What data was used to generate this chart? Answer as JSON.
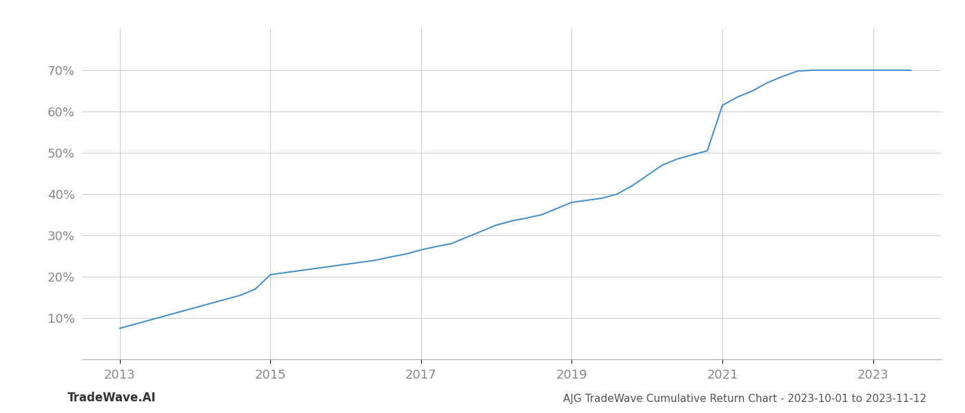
{
  "title": "AJG TradeWave Cumulative Return Chart - 2023-10-01 to 2023-11-12",
  "watermark": "TradeWave.AI",
  "line_color": "#4a90c4",
  "line_width": 1.5,
  "background_color": "#ffffff",
  "grid_color": "#cccccc",
  "x_years": [
    2013.0,
    2013.2,
    2013.4,
    2013.6,
    2013.8,
    2014.0,
    2014.2,
    2014.4,
    2014.6,
    2014.8,
    2015.0,
    2015.2,
    2015.4,
    2015.6,
    2015.8,
    2016.0,
    2016.2,
    2016.4,
    2016.6,
    2016.8,
    2017.0,
    2017.2,
    2017.4,
    2017.6,
    2017.8,
    2018.0,
    2018.2,
    2018.4,
    2018.6,
    2018.8,
    2019.0,
    2019.2,
    2019.4,
    2019.6,
    2019.8,
    2020.0,
    2020.2,
    2020.4,
    2020.6,
    2020.8,
    2021.0,
    2021.2,
    2021.4,
    2021.6,
    2021.8,
    2022.0,
    2022.2,
    2022.4,
    2022.6,
    2022.8,
    2023.0,
    2023.5
  ],
  "y_values": [
    7.5,
    8.5,
    9.5,
    10.5,
    11.5,
    12.5,
    13.5,
    14.5,
    15.5,
    17.0,
    20.5,
    21.0,
    21.5,
    22.0,
    22.5,
    23.0,
    23.5,
    24.0,
    24.8,
    25.5,
    26.5,
    27.3,
    28.0,
    29.5,
    31.0,
    32.5,
    33.5,
    34.2,
    35.0,
    36.5,
    38.0,
    38.5,
    39.0,
    40.0,
    42.0,
    44.5,
    47.0,
    48.5,
    49.5,
    50.5,
    61.5,
    63.5,
    65.0,
    67.0,
    68.5,
    69.8,
    70.0,
    70.0,
    70.0,
    70.0,
    70.0,
    70.0
  ],
  "xlim": [
    2012.5,
    2023.9
  ],
  "ylim": [
    0,
    80
  ],
  "yticks": [
    10,
    20,
    30,
    40,
    50,
    60,
    70
  ],
  "xticks": [
    2013,
    2015,
    2017,
    2019,
    2021,
    2023
  ],
  "tick_color": "#888888",
  "tick_fontsize": 13,
  "footer_fontsize": 11,
  "footer_color": "#555555",
  "watermark_color": "#333333",
  "watermark_fontsize": 12
}
